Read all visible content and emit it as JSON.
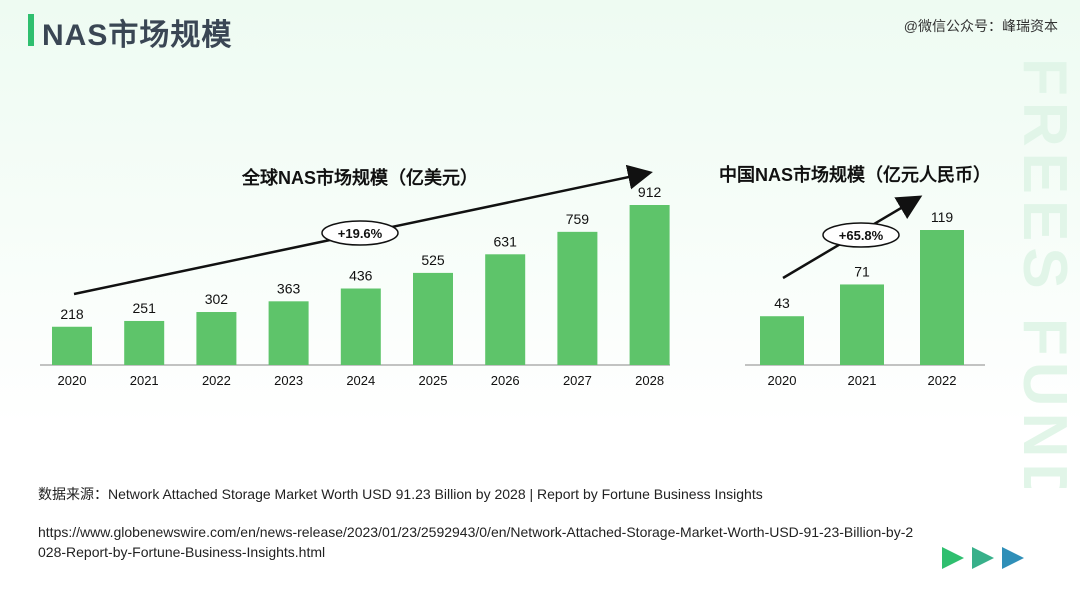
{
  "page": {
    "title": "NAS市场规模",
    "wechat": "@微信公众号：峰瑞资本",
    "watermark": "FREES FUND",
    "source": "数据来源：Network Attached Storage Market Worth USD 91.23 Billion by 2028 | Report by Fortune Business Insights",
    "url": "https://www.globenewswire.com/en/news-release/2023/01/23/2592943/0/en/Network-Attached-Storage-Market-Worth-USD-91-23-Billion-by-2028-Report-by-Fortune-Business-Insights.html",
    "colors": {
      "accent": "#2fbf6f",
      "bar": "#5ec46a",
      "arrow1": "#2fbf6f",
      "arrow2": "#38b08a",
      "arrow3": "#2f8fb8"
    }
  },
  "chart_data": [
    {
      "type": "bar",
      "title": "全球NAS市场规模（亿美元）",
      "categories": [
        "2020",
        "2021",
        "2022",
        "2023",
        "2024",
        "2025",
        "2026",
        "2027",
        "2028"
      ],
      "values": [
        218,
        251,
        302,
        363,
        436,
        525,
        631,
        759,
        912
      ],
      "annotation": "+19.6%"
    },
    {
      "type": "bar",
      "title": "中国NAS市场规模（亿元人民币）",
      "categories": [
        "2020",
        "2021",
        "2022"
      ],
      "values": [
        43,
        71,
        119
      ],
      "annotation": "+65.8%"
    }
  ]
}
